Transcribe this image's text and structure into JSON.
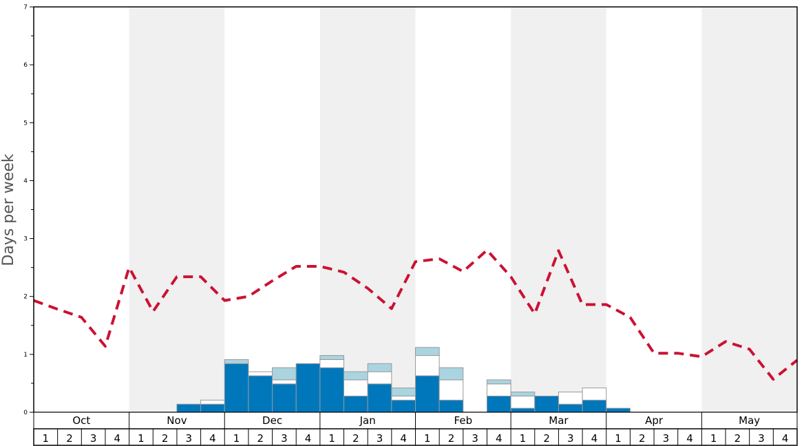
{
  "chart_data": {
    "type": "bar",
    "ylabel": "Days per week",
    "ylim": [
      0,
      7
    ],
    "yticks": [
      "0",
      "1",
      "2",
      "3",
      "4",
      "5",
      "6",
      "7"
    ],
    "months": [
      "Oct",
      "Nov",
      "Dec",
      "Jan",
      "Feb",
      "Mar",
      "Apr",
      "May"
    ],
    "weeks": [
      "1",
      "2",
      "3",
      "4"
    ],
    "shaded_months": [
      "Nov",
      "Jan",
      "Mar",
      "May"
    ],
    "colors": {
      "primary": "#0077bb",
      "secondary": "#ffffff",
      "tertiary": "#aad4e0",
      "line": "#cc1133",
      "shade": "#f0f0f0"
    },
    "series": [
      {
        "key": "primary",
        "values": [
          0,
          0,
          0,
          0,
          0,
          0,
          0.14,
          0.14,
          0.84,
          0.63,
          0.49,
          0.84,
          0.77,
          0.28,
          0.49,
          0.21,
          0.63,
          0.21,
          0,
          0.28,
          0.07,
          0.28,
          0.14,
          0.21,
          0.07,
          0,
          0,
          0,
          0,
          0,
          0,
          0
        ]
      },
      {
        "key": "secondary",
        "values": [
          0,
          0,
          0,
          0,
          0,
          0,
          0,
          0.07,
          0,
          0.07,
          0.07,
          0,
          0.14,
          0.28,
          0.21,
          0.07,
          0.35,
          0.35,
          0,
          0.21,
          0.21,
          0,
          0.21,
          0.21,
          0,
          0,
          0,
          0,
          0,
          0,
          0,
          0
        ]
      },
      {
        "key": "tertiary",
        "values": [
          0,
          0,
          0,
          0,
          0,
          0,
          0,
          0,
          0.07,
          0,
          0.21,
          0,
          0.07,
          0.14,
          0.14,
          0.14,
          0.14,
          0.21,
          0,
          0.07,
          0.07,
          0,
          0,
          0,
          0,
          0,
          0,
          0,
          0,
          0,
          0,
          0
        ]
      }
    ],
    "line": {
      "style": "dashed",
      "values": [
        1.93,
        1.78,
        1.64,
        1.14,
        2.5,
        1.74,
        2.34,
        2.34,
        1.93,
        2.0,
        2.27,
        2.52,
        2.52,
        2.42,
        2.14,
        1.79,
        2.6,
        2.65,
        2.43,
        2.8,
        2.34,
        1.7,
        2.79,
        1.86,
        1.86,
        1.64,
        1.02,
        1.02,
        0.96,
        1.22,
        1.09,
        0.57,
        0.9
      ]
    }
  }
}
